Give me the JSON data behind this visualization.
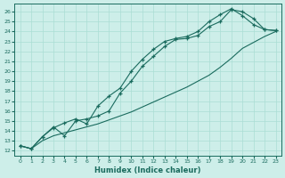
{
  "xlabel": "Humidex (Indice chaleur)",
  "xlim": [
    -0.5,
    23.5
  ],
  "ylim": [
    11.5,
    26.8
  ],
  "xticks": [
    0,
    1,
    2,
    3,
    4,
    5,
    6,
    7,
    8,
    9,
    10,
    11,
    12,
    13,
    14,
    15,
    16,
    17,
    18,
    19,
    20,
    21,
    22,
    23
  ],
  "yticks": [
    12,
    13,
    14,
    15,
    16,
    17,
    18,
    19,
    20,
    21,
    22,
    23,
    24,
    25,
    26
  ],
  "bg_color": "#cdeee9",
  "line_color": "#1a6b5e",
  "grid_color": "#aaddd4",
  "line1_x": [
    0,
    1,
    2,
    3,
    4,
    5,
    6,
    7,
    8,
    9,
    10,
    11,
    12,
    13,
    14,
    15,
    16,
    17,
    18,
    19,
    20,
    21,
    22,
    23
  ],
  "line1_y": [
    12.5,
    12.2,
    13.4,
    14.4,
    13.5,
    15.0,
    15.2,
    15.5,
    16.0,
    17.8,
    19.0,
    20.5,
    21.5,
    22.5,
    23.2,
    23.3,
    23.6,
    24.5,
    25.0,
    26.2,
    26.0,
    25.3,
    24.2,
    24.1
  ],
  "line2_x": [
    0,
    1,
    2,
    3,
    4,
    5,
    6,
    7,
    8,
    9,
    10,
    11,
    12,
    13,
    14,
    15,
    16,
    17,
    18,
    19,
    20,
    21,
    22,
    23
  ],
  "line2_y": [
    12.5,
    12.2,
    13.4,
    14.3,
    14.8,
    15.2,
    14.7,
    16.5,
    17.5,
    18.3,
    20.0,
    21.2,
    22.2,
    23.0,
    23.3,
    23.5,
    24.0,
    25.0,
    25.7,
    26.3,
    25.6,
    24.7,
    24.2,
    24.1
  ],
  "line3_x": [
    0,
    1,
    2,
    3,
    4,
    5,
    6,
    7,
    8,
    9,
    10,
    11,
    12,
    13,
    14,
    15,
    16,
    17,
    18,
    19,
    20,
    21,
    22,
    23
  ],
  "line3_y": [
    12.5,
    12.2,
    13.0,
    13.5,
    13.8,
    14.1,
    14.4,
    14.7,
    15.1,
    15.5,
    15.9,
    16.4,
    16.9,
    17.4,
    17.9,
    18.4,
    19.0,
    19.6,
    20.4,
    21.3,
    22.3,
    22.9,
    23.5,
    24.0
  ]
}
